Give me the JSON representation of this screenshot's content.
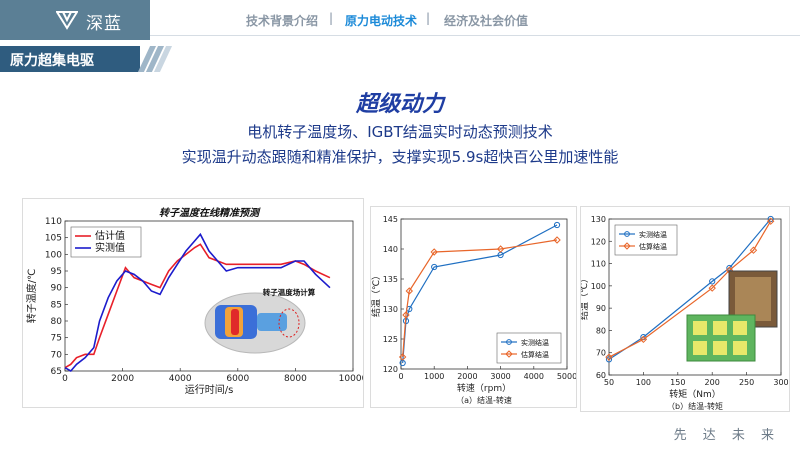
{
  "brand": {
    "name": "深蓝",
    "logo_icon": "triangle-v-logo-icon"
  },
  "nav": {
    "items": [
      {
        "label": "技术背景介绍",
        "active": false
      },
      {
        "label": "原力电动技术",
        "active": true
      },
      {
        "label": "经济及社会价值",
        "active": false
      }
    ],
    "separator": "|"
  },
  "section": {
    "title": "原力超集电驱"
  },
  "headline": "超级动力",
  "subtitle": {
    "line1": "电机转子温度场、IGBT结温实时动态预测技术",
    "line2": "实现温升动态跟随和精准保护，支撑实现5.9s超快百公里加速性能"
  },
  "colors": {
    "accent_blue": "#2f5c7f",
    "nav_active": "#1c8ad8",
    "headline_blue": "#1f3ea3"
  },
  "chart_data": [
    {
      "type": "line",
      "title": "转子温度在线精准预测",
      "xlabel": "运行时间/s",
      "ylabel": "转子温度/℃",
      "xlim": [
        0,
        10000
      ],
      "ylim": [
        65,
        110
      ],
      "xticks": [
        0,
        2000,
        4000,
        6000,
        8000,
        10000
      ],
      "yticks": [
        65,
        70,
        75,
        80,
        85,
        90,
        95,
        100,
        105,
        110
      ],
      "legend": "top-left",
      "inset_label": "转子温度场计算",
      "series": [
        {
          "name": "估计值",
          "color": "#e8202a",
          "x": [
            0,
            200,
            400,
            700,
            1000,
            1200,
            1500,
            1800,
            2100,
            2400,
            2700,
            3000,
            3300,
            3600,
            3900,
            4200,
            4500,
            4700,
            5000,
            5300,
            5600,
            6000,
            6500,
            7000,
            7500,
            8000,
            8300,
            8700,
            9200
          ],
          "y": [
            66,
            67,
            69,
            70,
            70,
            75,
            82,
            89,
            96,
            93,
            92,
            91,
            90,
            95,
            98,
            100,
            102,
            103,
            99,
            98,
            97,
            97,
            97,
            97,
            97,
            98,
            97,
            95,
            93
          ]
        },
        {
          "name": "实测值",
          "color": "#1c1ccc",
          "x": [
            0,
            200,
            400,
            700,
            1000,
            1200,
            1500,
            1800,
            2100,
            2400,
            2700,
            3000,
            3300,
            3600,
            3900,
            4200,
            4500,
            4700,
            5000,
            5300,
            5600,
            6000,
            6500,
            7000,
            7500,
            8000,
            8300,
            8700,
            9200
          ],
          "y": [
            66,
            65,
            67,
            69,
            72,
            80,
            87,
            92,
            95,
            94,
            92,
            89,
            88,
            93,
            97,
            101,
            104,
            106,
            101,
            98,
            95,
            96,
            96,
            96,
            96,
            98,
            98,
            94,
            90
          ]
        }
      ]
    },
    {
      "type": "line",
      "xlabel": "转速（rpm）",
      "ylabel": "结温（℃）",
      "caption": "（a）结温-转速",
      "xlim": [
        0,
        5000
      ],
      "ylim": [
        120,
        145
      ],
      "xticks": [
        0,
        1000,
        2000,
        3000,
        4000,
        5000
      ],
      "yticks": [
        120,
        125,
        130,
        135,
        140,
        145
      ],
      "legend": "bottom-right",
      "series": [
        {
          "name": "实测结温",
          "color": "#1f6fc2",
          "marker": "circle",
          "x": [
            50,
            150,
            250,
            1000,
            3000,
            4700
          ],
          "y": [
            121,
            128,
            130,
            137,
            139,
            144
          ]
        },
        {
          "name": "估算结温",
          "color": "#e8662a",
          "marker": "diamond",
          "x": [
            50,
            150,
            250,
            1000,
            3000,
            4700
          ],
          "y": [
            122,
            129,
            133,
            139.5,
            140,
            141.5
          ]
        }
      ]
    },
    {
      "type": "line",
      "xlabel": "转矩（Nm）",
      "ylabel": "结温（℃）",
      "caption": "（b）结温-转矩",
      "xlim": [
        50,
        300
      ],
      "ylim": [
        60,
        130
      ],
      "xticks": [
        50,
        100,
        150,
        200,
        250,
        300
      ],
      "yticks": [
        60,
        70,
        80,
        90,
        100,
        110,
        120,
        130
      ],
      "legend": "top-left",
      "series": [
        {
          "name": "实测结温",
          "color": "#1f6fc2",
          "marker": "circle",
          "x": [
            50,
            100,
            200,
            225,
            285
          ],
          "y": [
            67,
            77,
            102,
            108,
            130
          ]
        },
        {
          "name": "估算结温",
          "color": "#e8662a",
          "marker": "diamond",
          "x": [
            50,
            100,
            200,
            225,
            260,
            285
          ],
          "y": [
            68,
            76,
            99,
            107,
            116,
            129
          ]
        }
      ]
    }
  ],
  "footer": {
    "slogan": "先 达 未 来"
  }
}
